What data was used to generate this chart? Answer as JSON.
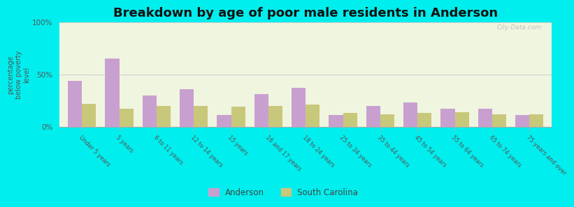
{
  "title": "Breakdown by age of poor male residents in Anderson",
  "ylabel": "percentage\nbelow poverty\nlevel",
  "categories": [
    "Under 5 years",
    "5 years",
    "6 to 11 years",
    "12 to 14 years",
    "15 years",
    "16 and 17 years",
    "18 to 24 years",
    "25 to 34 years",
    "35 to 44 years",
    "45 to 54 years",
    "55 to 64 years",
    "65 to 74 years",
    "75 years and over"
  ],
  "anderson_values": [
    44,
    65,
    30,
    36,
    11,
    31,
    37,
    11,
    20,
    23,
    17,
    17,
    11
  ],
  "sc_values": [
    22,
    17,
    20,
    20,
    19,
    20,
    21,
    13,
    12,
    13,
    14,
    12,
    12
  ],
  "anderson_color": "#c8a0d0",
  "sc_color": "#c8c87a",
  "ylim": [
    0,
    100
  ],
  "ytick_labels": [
    "0%",
    "50%",
    "100%"
  ],
  "ytick_values": [
    0,
    50,
    100
  ],
  "bg_color": "#00eeee",
  "plot_bg_color": "#f0f5e0",
  "legend_anderson": "Anderson",
  "legend_sc": "South Carolina",
  "title_fontsize": 13,
  "bar_width": 0.38
}
